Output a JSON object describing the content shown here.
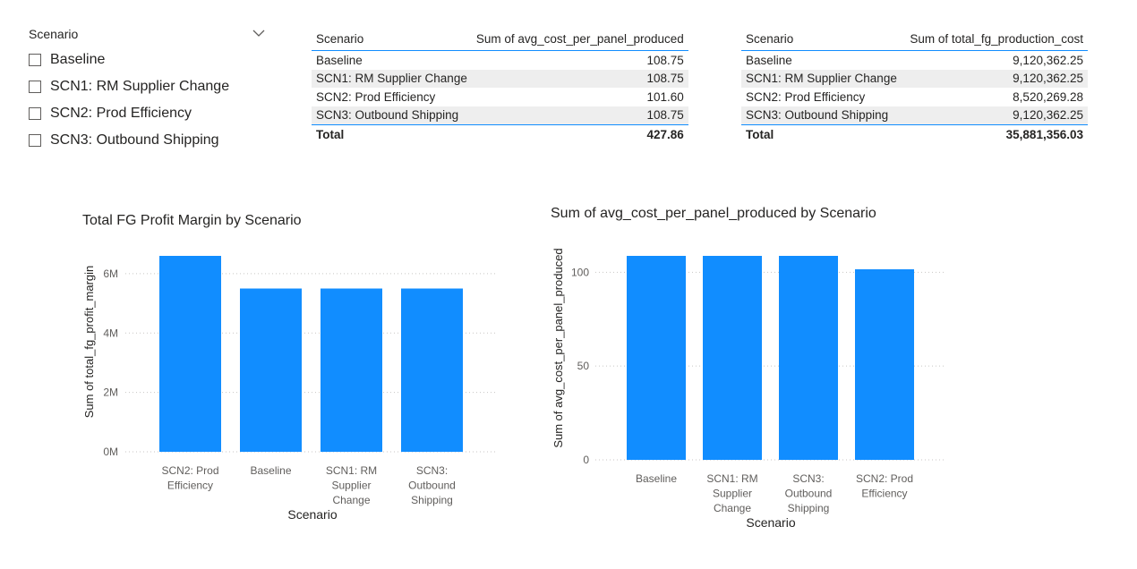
{
  "slicer": {
    "title": "Scenario",
    "items": [
      {
        "label": "Baseline"
      },
      {
        "label": "SCN1: RM Supplier Change"
      },
      {
        "label": "SCN2: Prod Efficiency"
      },
      {
        "label": "SCN3: Outbound Shipping"
      }
    ]
  },
  "table1": {
    "headers": [
      "Scenario",
      "Sum of avg_cost_per_panel_produced"
    ],
    "rows": [
      [
        "Baseline",
        "108.75"
      ],
      [
        "SCN1: RM Supplier Change",
        "108.75"
      ],
      [
        "SCN2: Prod Efficiency",
        "101.60"
      ],
      [
        "SCN3: Outbound Shipping",
        "108.75"
      ]
    ],
    "total": [
      "Total",
      "427.86"
    ]
  },
  "table2": {
    "headers": [
      "Scenario",
      "Sum of total_fg_production_cost"
    ],
    "rows": [
      [
        "Baseline",
        "9,120,362.25"
      ],
      [
        "SCN1: RM Supplier Change",
        "9,120,362.25"
      ],
      [
        "SCN2: Prod Efficiency",
        "8,520,269.28"
      ],
      [
        "SCN3: Outbound Shipping",
        "9,120,362.25"
      ]
    ],
    "total": [
      "Total",
      "35,881,356.03"
    ]
  },
  "colors": {
    "bar": "#118dff",
    "accent": "#118dff",
    "grid": "#c8c6c4",
    "text": "#605e5c"
  },
  "chart_data": [
    {
      "type": "bar",
      "title": "Total FG Profit Margin by Scenario",
      "xlabel": "Scenario",
      "ylabel": "Sum of total_fg_profit_margin",
      "categories": [
        [
          "SCN2: Prod",
          "Efficiency"
        ],
        [
          "Baseline"
        ],
        [
          "SCN1: RM",
          "Supplier",
          "Change"
        ],
        [
          "SCN3:",
          "Outbound",
          "Shipping"
        ]
      ],
      "values": [
        6600000,
        5500000,
        5500000,
        5500000
      ],
      "yticks": [
        0,
        2000000,
        4000000,
        6000000
      ],
      "yticklabels": [
        "0M",
        "2M",
        "4M",
        "6M"
      ],
      "ylim": [
        0,
        6600000
      ]
    },
    {
      "type": "bar",
      "title": "Sum of avg_cost_per_panel_produced by Scenario",
      "xlabel": "Scenario",
      "ylabel": "Sum of avg_cost_per_panel_produced",
      "categories": [
        [
          "Baseline"
        ],
        [
          "SCN1: RM",
          "Supplier",
          "Change"
        ],
        [
          "SCN3:",
          "Outbound",
          "Shipping"
        ],
        [
          "SCN2: Prod",
          "Efficiency"
        ]
      ],
      "values": [
        108.75,
        108.75,
        108.75,
        101.6
      ],
      "yticks": [
        0,
        50,
        100
      ],
      "yticklabels": [
        "0",
        "50",
        "100"
      ],
      "ylim": [
        0,
        108.75
      ]
    }
  ]
}
